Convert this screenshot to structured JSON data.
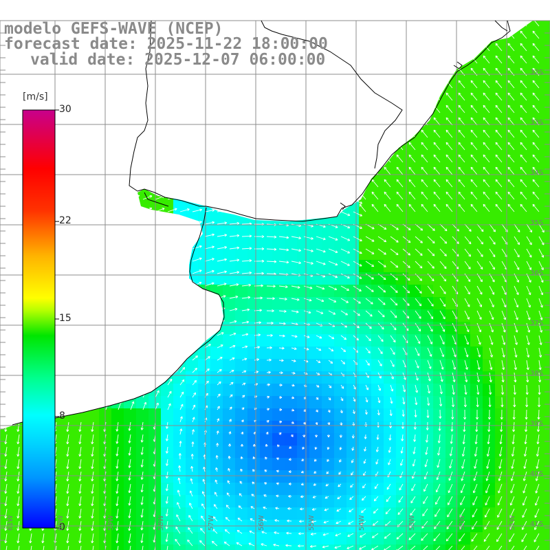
{
  "header": {
    "line1": "modelo GEFS-WAVE (NCEP)",
    "line2": "forecast date: 2025-11-22 18:00:00",
    "line3": "valid date: 2025-12-07 06:00:00"
  },
  "colorbar": {
    "unit": "[m/s]",
    "min": 0,
    "max": 30,
    "ticks": [
      {
        "label": "30",
        "value": 30
      },
      {
        "label": "22",
        "value": 22
      },
      {
        "label": "15",
        "value": 15
      },
      {
        "label": "8",
        "value": 8
      },
      {
        "label": "0",
        "value": 0
      }
    ],
    "colors": [
      "#0000ff",
      "#00b4ff",
      "#00ffff",
      "#00ff5a",
      "#00c800",
      "#c8ff00",
      "#ffff00",
      "#ff9600",
      "#ff0000",
      "#ff0096",
      "#b40096"
    ]
  },
  "map": {
    "latitude_labels": [
      "32S",
      "33S",
      "34S",
      "35S",
      "36S",
      "37S",
      "38S",
      "39S",
      "40S",
      "41S"
    ],
    "longitude_labels": [
      "61W",
      "60W",
      "59W",
      "58W",
      "57W",
      "56W",
      "55W",
      "54W",
      "53W",
      "52W",
      "51W"
    ],
    "colors": {
      "land": "#ffffff",
      "grid": "#8c8c8c",
      "coast": "#000000",
      "arrows": "#ffffff"
    }
  }
}
